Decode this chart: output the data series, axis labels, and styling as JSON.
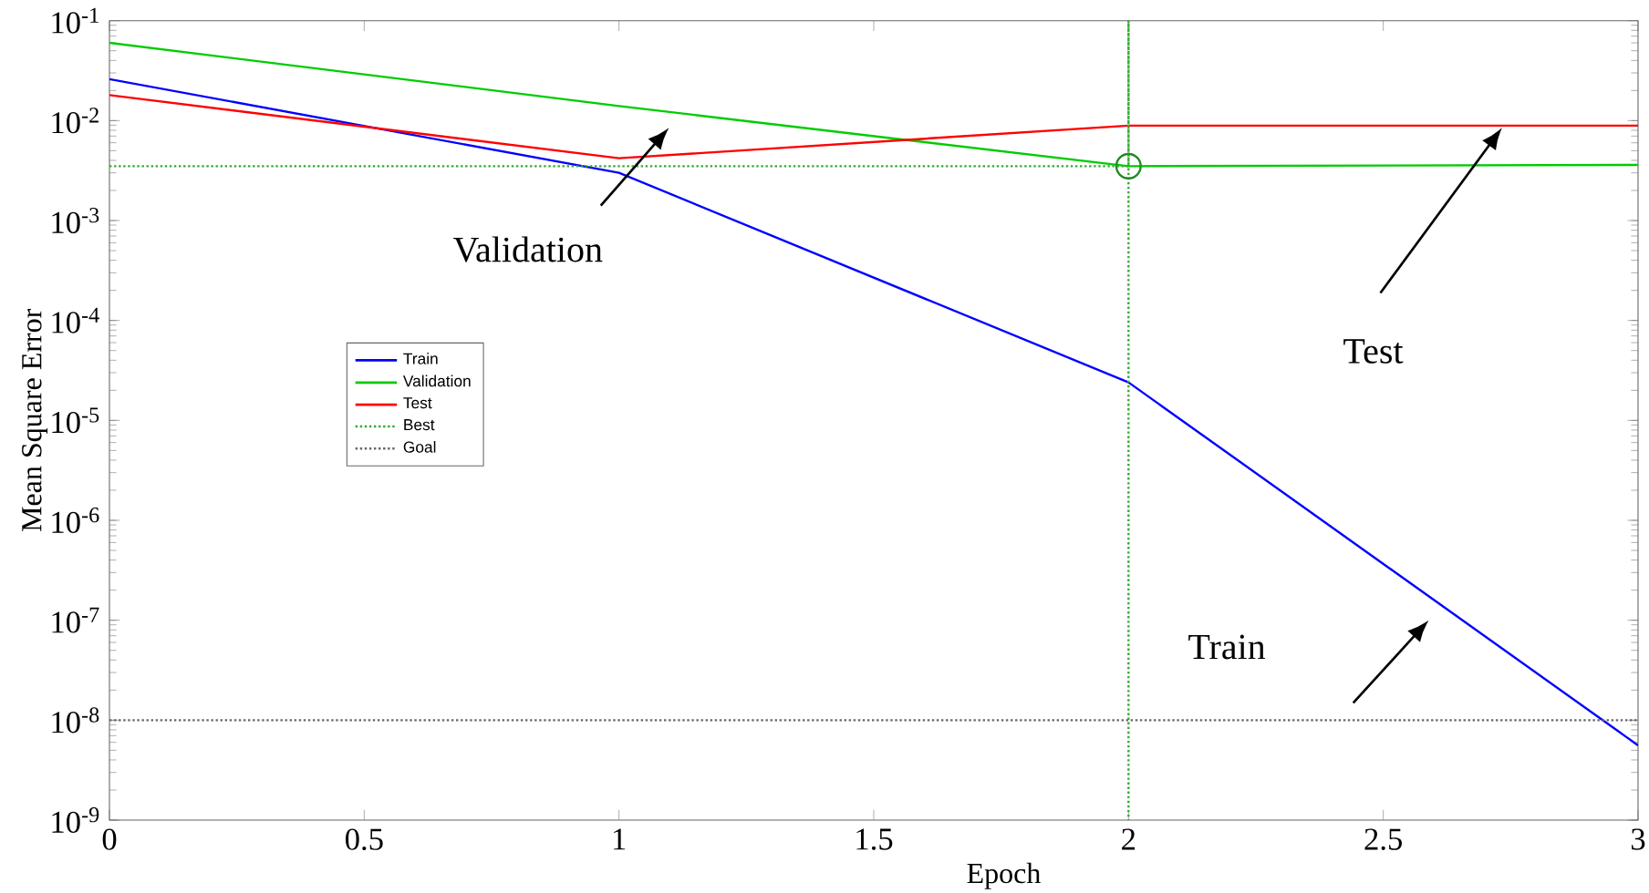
{
  "chart_data": {
    "type": "line",
    "xlabel": "Epoch",
    "ylabel": "Mean Square Error",
    "xlim": [
      0,
      3
    ],
    "xticks": [
      0,
      0.5,
      1,
      1.5,
      2,
      2.5,
      3
    ],
    "ylim": [
      1e-09,
      0.1
    ],
    "log": "y",
    "yticks": [
      {
        "value": 1e-09,
        "label": "10$^{-9}$"
      },
      {
        "value": 1e-08,
        "label": "10$^{-8}$"
      },
      {
        "value": 1e-07,
        "label": "10$^{-7}$"
      },
      {
        "value": 1e-06,
        "label": "10$^{-6}$"
      },
      {
        "value": 1e-05,
        "label": "10$^{-5}$"
      },
      {
        "value": 0.0001,
        "label": "10$^{-4}$"
      },
      {
        "value": 0.001,
        "label": "10$^{-3}$"
      },
      {
        "value": 0.01,
        "label": "10$^{-2}$"
      },
      {
        "value": 0.1,
        "label": "10$^{-1}$"
      }
    ],
    "x": [
      0,
      1,
      2,
      3
    ],
    "series": [
      {
        "name": "Train",
        "color": "#0000ff",
        "values": [
          0.026,
          0.003,
          2.4e-05,
          5.6e-09
        ]
      },
      {
        "name": "Validation",
        "color": "#00cc00",
        "values": [
          0.06,
          0.014,
          0.0035,
          0.0036
        ]
      },
      {
        "name": "Test",
        "color": "#ff0000",
        "values": [
          0.018,
          0.0042,
          0.0089,
          0.0089
        ]
      },
      {
        "name": "Best",
        "color": "#33aa33",
        "line_style": "dotted",
        "x": [
          0,
          2,
          2,
          2
        ],
        "values": [
          0.0035,
          0.0035,
          0.1,
          1e-09
        ]
      },
      {
        "name": "Goal",
        "color": "#666666",
        "line_style": "dotted",
        "x": [
          0,
          3
        ],
        "values": [
          1e-08,
          1e-08
        ]
      },
      {
        "type": "scatter",
        "color": "#228b22",
        "marker": "circle",
        "x": [
          2
        ],
        "values": [
          0.0035
        ]
      }
    ],
    "legend": "left"
  }
}
